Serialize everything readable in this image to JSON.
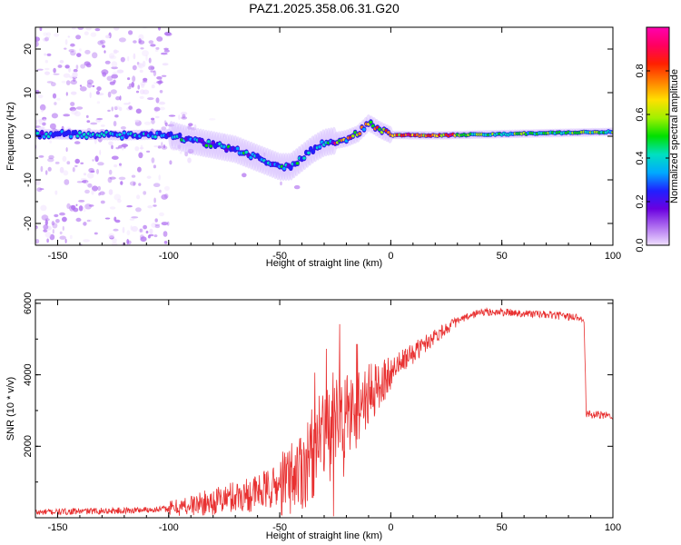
{
  "figure_title": "PAZ1.2025.358.06.31.G20",
  "chart_data": [
    {
      "type": "heatmap",
      "title": "PAZ1.2025.358.06.31.G20",
      "xlabel": "Height of straight line (km)",
      "ylabel": "Frequency (Hz)",
      "xlim": [
        -160,
        100
      ],
      "ylim": [
        -25,
        25
      ],
      "xticks": [
        -150,
        -100,
        -50,
        0,
        50,
        100
      ],
      "xtick_labels": [
        "-150",
        "-100",
        "-50",
        "0",
        "50",
        "100"
      ],
      "yticks": [
        -20,
        -10,
        0,
        10,
        20
      ],
      "ytick_labels": [
        "-20",
        "-10",
        "0",
        "10",
        "20"
      ],
      "colorbar": {
        "label": "Normalized spectral amplitude",
        "range": [
          0,
          1
        ],
        "ticks": [
          0.0,
          0.2,
          0.4,
          0.6,
          0.8
        ],
        "tick_labels": [
          "0.0",
          "0.2",
          "0.4",
          "0.6",
          "0.8"
        ],
        "colors": [
          "#f0e0ff",
          "#b070f0",
          "#6a00e0",
          "#2020ff",
          "#00aaff",
          "#00e0c0",
          "#00e000",
          "#a0f000",
          "#ffe000",
          "#ff8000",
          "#ff2000",
          "#ff0060",
          "#ff00b0"
        ]
      },
      "ridge": {
        "x": [
          -160,
          -140,
          -120,
          -100,
          -90,
          -80,
          -70,
          -60,
          -50,
          -45,
          -40,
          -35,
          -30,
          -25,
          -20,
          -15,
          -10,
          -8,
          -5,
          0,
          20,
          50,
          100
        ],
        "frequency": [
          0.5,
          0.4,
          0.2,
          0.5,
          -1,
          -2,
          -3,
          -5,
          -7,
          -7,
          -5,
          -3,
          -1.5,
          -1,
          -0.5,
          0.5,
          3,
          2.5,
          1.5,
          0.3,
          0.2,
          0.5,
          1
        ]
      }
    },
    {
      "type": "line",
      "xlabel": "Height of straight line (km)",
      "ylabel": "SNR (10 * v/v)",
      "xlim": [
        -160,
        100
      ],
      "ylim": [
        0,
        6100
      ],
      "xticks": [
        -150,
        -100,
        -50,
        0,
        50,
        100
      ],
      "xtick_labels": [
        "-150",
        "-100",
        "-50",
        "0",
        "50",
        "100"
      ],
      "yticks": [
        2000,
        4000,
        6000
      ],
      "ytick_labels": [
        "2000",
        "4000",
        "6000"
      ],
      "color": "#e83030",
      "series": [
        {
          "name": "SNR",
          "x": [
            -160,
            -140,
            -120,
            -100,
            -90,
            -80,
            -70,
            -60,
            -50,
            -40,
            -30,
            -25,
            -20,
            -15,
            -10,
            -5,
            0,
            10,
            20,
            30,
            40,
            50,
            60,
            70,
            80,
            87,
            88,
            90,
            100
          ],
          "y": [
            150,
            180,
            200,
            250,
            350,
            450,
            600,
            700,
            900,
            1400,
            2200,
            2600,
            2800,
            3100,
            3400,
            3700,
            4100,
            4600,
            5100,
            5500,
            5750,
            5750,
            5720,
            5680,
            5630,
            5580,
            2900,
            2880,
            2860
          ]
        }
      ]
    }
  ]
}
